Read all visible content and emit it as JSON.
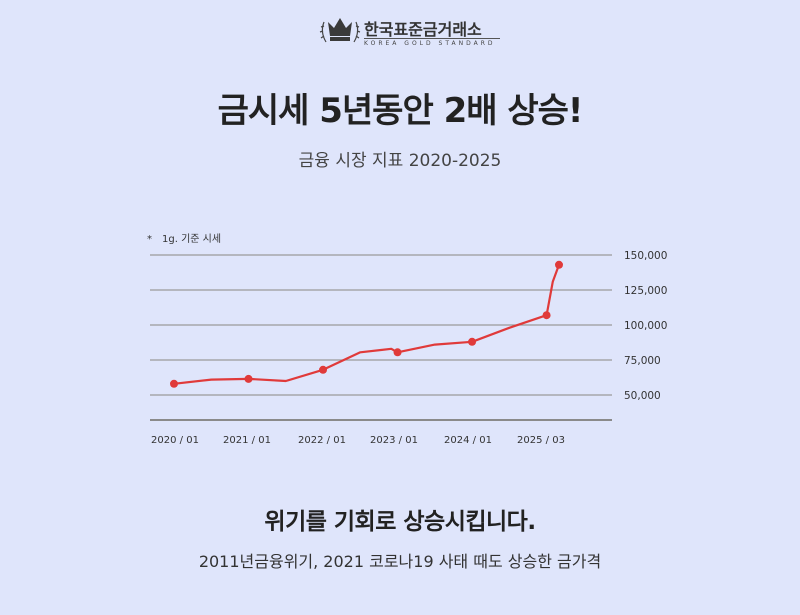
{
  "logo": {
    "name": "한국표준금거래소",
    "subtitle": "KOREA GOLD STANDARD"
  },
  "headline": "금시세 5년동안 2배 상승!",
  "subheadline": "금융 시장 지표 2020-2025",
  "note": {
    "star": "*",
    "text": "1g. 기준 시세"
  },
  "chart_data": {
    "type": "line",
    "x_ticks": [
      "2020 / 01",
      "2021 / 01",
      "2022 / 01",
      "2023 / 01",
      "2024 / 01",
      "2025 / 03"
    ],
    "y_ticks": [
      "150,000",
      "125,000",
      "100,000",
      "75,000",
      "50,000"
    ],
    "y_tick_values": [
      150000,
      125000,
      100000,
      75000,
      50000
    ],
    "ylim": [
      35000,
      150000
    ],
    "grid": true,
    "series": [
      {
        "color": "#e03a3a",
        "x": [
          "2020-01",
          "2020-07",
          "2021-01",
          "2021-07",
          "2022-01",
          "2022-07",
          "2022-12",
          "2023-01",
          "2023-07",
          "2024-01",
          "2024-07",
          "2025-01",
          "2025-02",
          "2025-03"
        ],
        "y": [
          58000,
          61000,
          61500,
          60000,
          68000,
          80500,
          83000,
          80500,
          86000,
          88000,
          98000,
          107000,
          131000,
          143000
        ],
        "marked": [
          "2020-01",
          "2021-01",
          "2022-01",
          "2023-01",
          "2024-01",
          "2025-01",
          "2025-03"
        ]
      }
    ]
  },
  "tagline": "위기를 기회로 상승시킵니다.",
  "subline": "2011년금융위기, 2021 코로나19 사태 때도 상승한 금가격"
}
